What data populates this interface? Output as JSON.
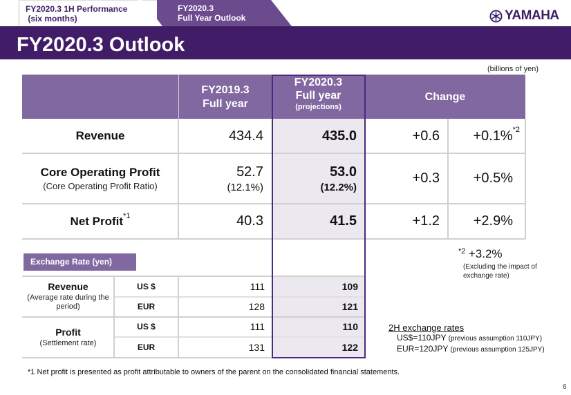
{
  "tabs": [
    {
      "line1": "FY2020.3  1H Performance",
      "line2": " (six months)",
      "active": false
    },
    {
      "line1": "FY2020.3",
      "line2": "Full  Year  Outlook",
      "active": true
    }
  ],
  "logo": {
    "text": "YAMAHA",
    "icon": "tuning-fork-emblem-icon"
  },
  "title": "FY2020.3 Outlook",
  "units": "(billions of yen)",
  "colors": {
    "brand_purple": "#421d67",
    "header_purple": "#8268a0",
    "highlight_shade": "#ebe8ef"
  },
  "table": {
    "headers": {
      "fy19_line1": "FY2019.3",
      "fy19_line2": "Full year",
      "fy20_line1": "FY2020.3",
      "fy20_line2": "Full year",
      "fy20_line3": "(projections)",
      "change": "Change"
    },
    "rows": [
      {
        "label": "Revenue",
        "sub": "",
        "sup": "",
        "fy19": "434.4",
        "fy19_sub": "",
        "fy20": "435.0",
        "fy20_sub": "",
        "change_abs": "+0.6",
        "change_pct": "+0.1%",
        "pct_sup": "*2"
      },
      {
        "label": "Core Operating Profit",
        "sub": "(Core Operating Profit Ratio)",
        "sup": "",
        "fy19": "52.7",
        "fy19_sub": "(12.1%)",
        "fy20": "53.0",
        "fy20_sub": "(12.2%)",
        "change_abs": "+0.3",
        "change_pct": "+0.5%",
        "pct_sup": ""
      },
      {
        "label": "Net Profit",
        "sub": "",
        "sup": "*1",
        "fy19": "40.3",
        "fy19_sub": "",
        "fy20": "41.5",
        "fy20_sub": "",
        "change_abs": "+1.2",
        "change_pct": "+2.9%",
        "pct_sup": ""
      }
    ]
  },
  "exchange": {
    "label": "Exchange Rate (yen)",
    "groups": [
      {
        "label": "Revenue",
        "sub": "(Average rate during the period)",
        "rows": [
          {
            "currency": "US $",
            "fy19": "111",
            "fy20": "109"
          },
          {
            "currency": "EUR",
            "fy19": "128",
            "fy20": "121"
          }
        ]
      },
      {
        "label": "Profit",
        "sub": "(Settlement rate)",
        "rows": [
          {
            "currency": "US $",
            "fy19": "111",
            "fy20": "110"
          },
          {
            "currency": "EUR",
            "fy19": "131",
            "fy20": "122"
          }
        ]
      }
    ]
  },
  "note2": {
    "sup": "*2",
    "value": "+3.2%",
    "desc_line1": "(Excluding the impact of",
    "desc_line2": "exchange rate)"
  },
  "rates_2h": {
    "heading": "2H exchange rates",
    "lines": [
      {
        "main": "US$=110JPY",
        "note": "(previous  assumption 110JPY)"
      },
      {
        "main": "EUR=120JPY",
        "note": "(previous  assumption 125JPY)"
      }
    ]
  },
  "footnote": "*1  Net profit is presented as profit attributable to owners of the parent on the consolidated financial statements.",
  "page_number": "6"
}
